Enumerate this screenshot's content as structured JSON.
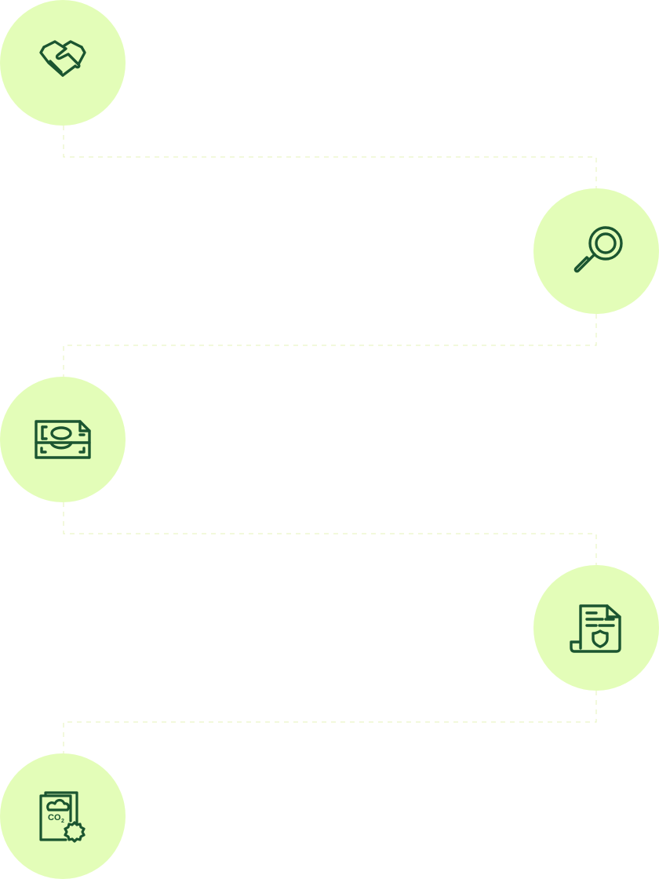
{
  "colors": {
    "circle_fill": "#e3fdb8",
    "icon_stroke": "#1b5530",
    "connector": "#e9f5c6"
  },
  "steps": [
    {
      "icon": "handshake-icon"
    },
    {
      "icon": "magnifying-glass-icon"
    },
    {
      "icon": "money-bill-icon"
    },
    {
      "icon": "shield-document-icon"
    },
    {
      "icon": "co2-certificate-icon"
    }
  ]
}
